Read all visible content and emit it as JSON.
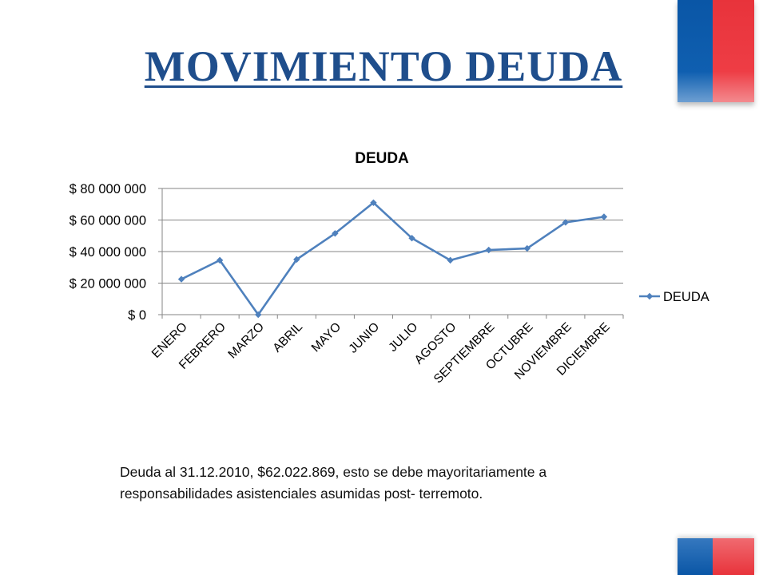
{
  "slide": {
    "title": "MOVIMIENTO DEUDA",
    "caption_line1": "Deuda  al 31.12.2010, $62.022.869, esto se debe  mayoritariamente a",
    "caption_line2": "responsabilidades  asistenciales asumidas  post- terremoto."
  },
  "colors": {
    "title": "#1f4e8c",
    "series": "#4f81bd",
    "flag_blue": "#0f5fb0",
    "flag_red": "#ee3d45"
  },
  "chart_data": {
    "type": "line",
    "title": "DEUDA",
    "xlabel": "",
    "ylabel": "",
    "categories": [
      "ENERO",
      "FEBRERO",
      "MARZO",
      "ABRIL",
      "MAYO",
      "JUNIO",
      "JULIO",
      "AGOSTO",
      "SEPTIEMBRE",
      "OCTUBRE",
      "NOVIEMBRE",
      "DICIEMBRE"
    ],
    "series": [
      {
        "name": "DEUDA",
        "values": [
          22500000,
          34500000,
          0,
          35000000,
          51500000,
          71000000,
          48500000,
          34500000,
          41000000,
          42000000,
          58500000,
          62022869
        ]
      }
    ],
    "ylim": [
      0,
      80000000
    ],
    "yticks": [
      0,
      20000000,
      40000000,
      60000000,
      80000000
    ],
    "ytick_labels": [
      "$ 0",
      "$ 20 000 000",
      "$ 40 000 000",
      "$ 60 000 000",
      "$ 80 000 000"
    ],
    "grid": true,
    "legend": "right",
    "marker": "diamond"
  }
}
